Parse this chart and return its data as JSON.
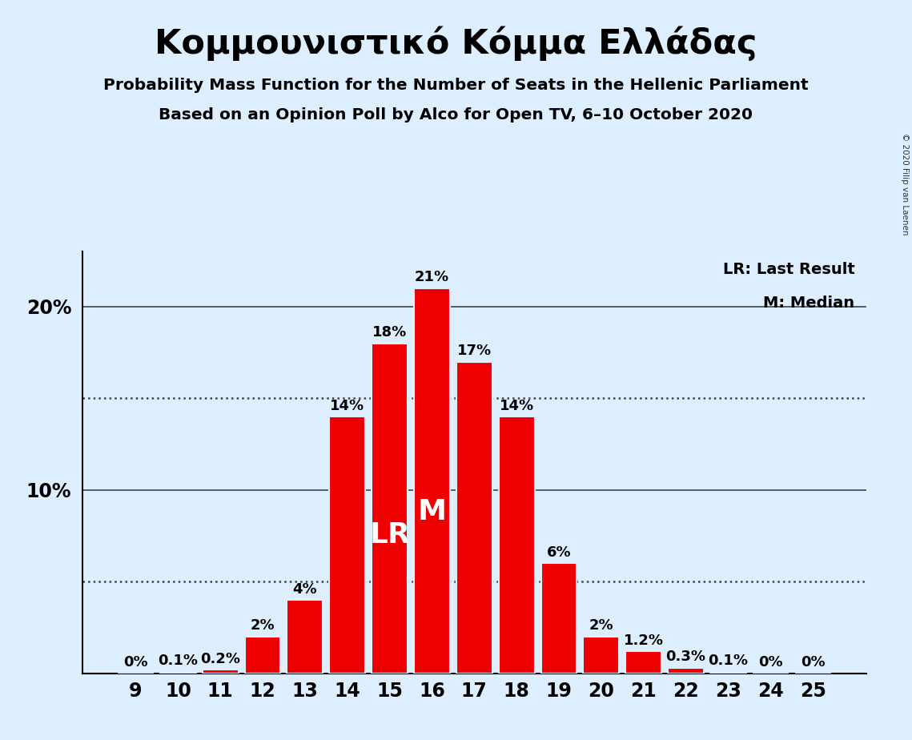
{
  "title": "Κομμουνιστικό Κόμμα Ελλάδας",
  "subtitle1": "Probability Mass Function for the Number of Seats in the Hellenic Parliament",
  "subtitle2": "Based on an Opinion Poll by Alco for Open TV, 6–10 October 2020",
  "copyright": "© 2020 Filip van Laenen",
  "seats": [
    9,
    10,
    11,
    12,
    13,
    14,
    15,
    16,
    17,
    18,
    19,
    20,
    21,
    22,
    23,
    24,
    25
  ],
  "probabilities": [
    0.0,
    0.1,
    0.2,
    2.0,
    4.0,
    14.0,
    18.0,
    21.0,
    17.0,
    14.0,
    6.0,
    2.0,
    1.2,
    0.3,
    0.1,
    0.0,
    0.0
  ],
  "bar_color": "#EE0000",
  "bg_color": "#DDEEFF",
  "label_color_dark": "#000000",
  "label_color_white": "#FFFFFF",
  "lr_seat": 15,
  "median_seat": 16,
  "ylim": [
    0,
    23
  ],
  "dotted_lines": [
    5.0,
    15.0
  ],
  "solid_lines": [
    10.0,
    20.0
  ],
  "legend_lr": "LR: Last Result",
  "legend_m": "M: Median",
  "bar_labels": [
    "0%",
    "0.1%",
    "0.2%",
    "2%",
    "4%",
    "14%",
    "18%",
    "21%",
    "17%",
    "14%",
    "6%",
    "2%",
    "1.2%",
    "0.3%",
    "0.1%",
    "0%",
    "0%"
  ]
}
